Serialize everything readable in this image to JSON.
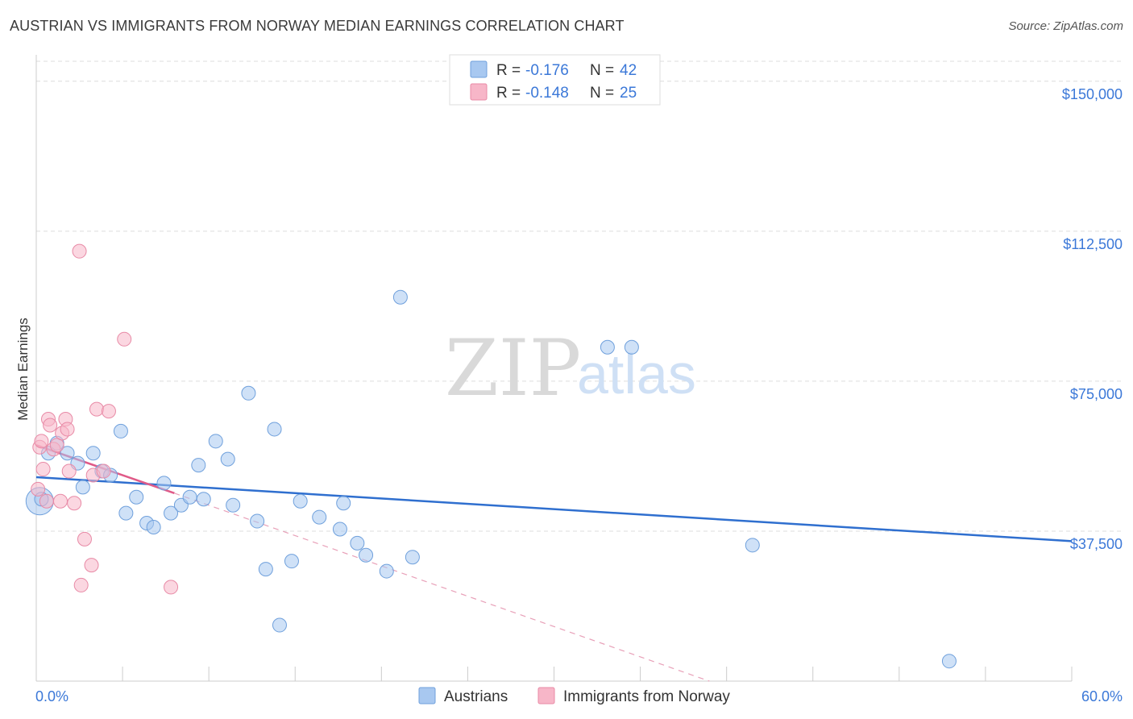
{
  "title": "AUSTRIAN VS IMMIGRANTS FROM NORWAY MEDIAN EARNINGS CORRELATION CHART",
  "source": "Source: ZipAtlas.com",
  "watermark": {
    "zip": "ZIP",
    "atlas": "atlas"
  },
  "chart_data": {
    "type": "scatter",
    "ylabel": "Median Earnings",
    "xlim": [
      0,
      60
    ],
    "ylim": [
      0,
      155000
    ],
    "x_tick_labels": [
      "0.0%",
      "60.0%"
    ],
    "y_ticks": [
      37500,
      75000,
      112500,
      150000
    ],
    "y_tick_labels": [
      "$37,500",
      "$75,000",
      "$112,500",
      "$150,000"
    ],
    "legend": [
      {
        "name": "Austrians",
        "r_label": "R =",
        "r": "-0.176",
        "n_label": "N =",
        "n": "42",
        "color": "#a8c8f0",
        "stroke": "#6fa0dc"
      },
      {
        "name": "Immigrants from Norway",
        "r_label": "R =",
        "r": "-0.148",
        "n_label": "N =",
        "n": "25",
        "color": "#f7b6c8",
        "stroke": "#e88aa6"
      }
    ],
    "series": [
      {
        "name": "Austrians",
        "points": [
          [
            0.3,
            45500
          ],
          [
            0.7,
            57000
          ],
          [
            1.2,
            59500
          ],
          [
            1.8,
            57000
          ],
          [
            2.4,
            54500
          ],
          [
            2.7,
            48500
          ],
          [
            3.3,
            57000
          ],
          [
            3.8,
            52500
          ],
          [
            4.3,
            51500
          ],
          [
            4.9,
            62500
          ],
          [
            5.8,
            46000
          ],
          [
            5.2,
            42000
          ],
          [
            6.4,
            39500
          ],
          [
            6.8,
            38500
          ],
          [
            7.4,
            49500
          ],
          [
            7.8,
            42000
          ],
          [
            8.4,
            44000
          ],
          [
            8.9,
            46000
          ],
          [
            9.4,
            54000
          ],
          [
            9.7,
            45500
          ],
          [
            10.4,
            60000
          ],
          [
            11.1,
            55500
          ],
          [
            11.4,
            44000
          ],
          [
            12.3,
            72000
          ],
          [
            12.8,
            40000
          ],
          [
            13.3,
            28000
          ],
          [
            13.8,
            63000
          ],
          [
            14.1,
            14000
          ],
          [
            14.8,
            30000
          ],
          [
            15.3,
            45000
          ],
          [
            16.4,
            41000
          ],
          [
            17.6,
            38000
          ],
          [
            17.8,
            44500
          ],
          [
            18.6,
            34500
          ],
          [
            19.1,
            31500
          ],
          [
            20.3,
            27500
          ],
          [
            21.1,
            96000
          ],
          [
            21.8,
            31000
          ],
          [
            33.1,
            83500
          ],
          [
            34.5,
            83500
          ],
          [
            41.5,
            34000
          ],
          [
            52.9,
            5000
          ]
        ],
        "trend": {
          "x": [
            0,
            60
          ],
          "y": [
            51000,
            35000
          ]
        }
      },
      {
        "name": "Immigrants from Norway",
        "points": [
          [
            0.1,
            48000
          ],
          [
            0.2,
            58500
          ],
          [
            0.3,
            60000
          ],
          [
            0.4,
            53000
          ],
          [
            0.6,
            45000
          ],
          [
            0.7,
            65500
          ],
          [
            0.8,
            64000
          ],
          [
            1.0,
            58000
          ],
          [
            1.2,
            59000
          ],
          [
            1.4,
            45000
          ],
          [
            1.5,
            62000
          ],
          [
            1.7,
            65500
          ],
          [
            1.8,
            63000
          ],
          [
            1.9,
            52500
          ],
          [
            2.2,
            44500
          ],
          [
            2.5,
            107500
          ],
          [
            2.6,
            24000
          ],
          [
            2.8,
            35500
          ],
          [
            3.2,
            29000
          ],
          [
            3.3,
            51500
          ],
          [
            3.5,
            68000
          ],
          [
            3.9,
            52500
          ],
          [
            4.2,
            67500
          ],
          [
            5.1,
            85500
          ],
          [
            7.8,
            23500
          ]
        ],
        "trend_solid": {
          "x": [
            0,
            8
          ],
          "y": [
            59000,
            47000
          ]
        },
        "trend_dashed": {
          "x": [
            8,
            39
          ],
          "y": [
            47000,
            0
          ]
        }
      }
    ]
  }
}
